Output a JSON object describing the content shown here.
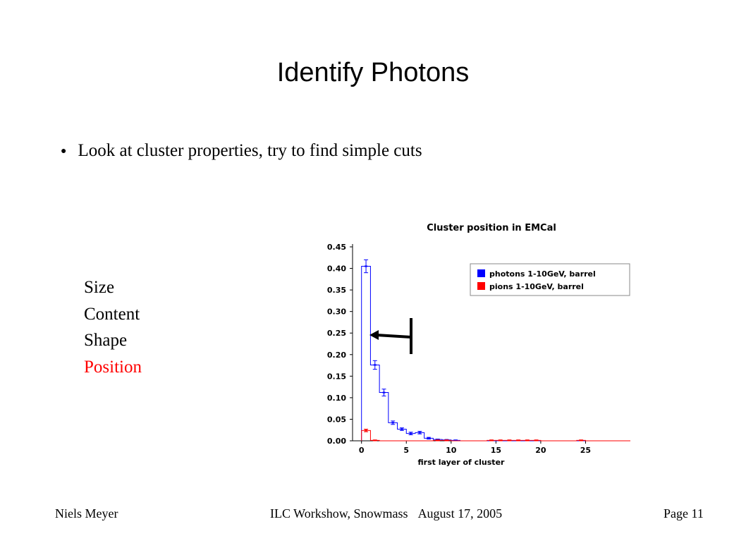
{
  "slide": {
    "title": "Identify Photons",
    "bullet": "Look at cluster properties, try to find simple cuts",
    "properties": [
      "Size",
      "Content",
      "Shape",
      "Position"
    ],
    "highlight_color": "#ff0000"
  },
  "footer": {
    "author": "Niels Meyer",
    "event": "ILC Workshow, Snowmass",
    "date": "August 17, 2005",
    "page": "Page 11"
  },
  "chart_data": {
    "type": "histogram",
    "title": "Cluster position in EMCal",
    "xlabel": "first layer of cluster",
    "ylabel": "",
    "xlim": [
      -1,
      30
    ],
    "ylim": [
      0,
      0.45
    ],
    "xticks": [
      0,
      5,
      10,
      15,
      20,
      25
    ],
    "yticks": [
      "0.00",
      "0.05",
      "0.10",
      "0.15",
      "0.20",
      "0.25",
      "0.30",
      "0.35",
      "0.40",
      "0.45"
    ],
    "bin_width": 1,
    "bins": [
      0,
      1,
      2,
      3,
      4,
      5,
      6,
      7,
      8,
      9,
      10,
      11,
      12,
      13,
      14,
      15,
      16,
      17,
      18,
      19,
      20,
      21,
      22,
      23,
      24,
      25,
      26,
      27,
      28,
      29
    ],
    "legend_position": "top-right",
    "series": [
      {
        "name": "photons 1-10GeV, barrel",
        "color": "#0000ff",
        "values": [
          0.405,
          0.176,
          0.112,
          0.042,
          0.027,
          0.017,
          0.019,
          0.006,
          0.003,
          0.002,
          0.001,
          0,
          0,
          0,
          0,
          0,
          0,
          0,
          0,
          0,
          0,
          0,
          0,
          0,
          0,
          0,
          0,
          0,
          0,
          0
        ],
        "errors": [
          0.015,
          0.01,
          0.008,
          0.004,
          0.003,
          0.003,
          0.003,
          0.002,
          0.001,
          0.001,
          0.001,
          0,
          0,
          0,
          0,
          0,
          0,
          0,
          0,
          0,
          0,
          0,
          0,
          0,
          0,
          0,
          0,
          0,
          0,
          0
        ]
      },
      {
        "name": "pions 1-10GeV, barrel",
        "color": "#ff0000",
        "values": [
          0.024,
          0.001,
          0,
          0,
          0,
          0,
          0,
          0,
          0.001,
          0.001,
          0,
          0,
          0,
          0,
          0.001,
          0.001,
          0.001,
          0.001,
          0.001,
          0.001,
          0,
          0,
          0,
          0,
          0.001,
          0,
          0,
          0,
          0,
          0
        ],
        "errors": [
          0.003,
          0.001,
          0,
          0,
          0,
          0,
          0,
          0,
          0.001,
          0.001,
          0,
          0,
          0,
          0,
          0.001,
          0.001,
          0.001,
          0.001,
          0.001,
          0.001,
          0,
          0,
          0,
          0,
          0.001,
          0,
          0,
          0,
          0,
          0
        ]
      }
    ]
  }
}
